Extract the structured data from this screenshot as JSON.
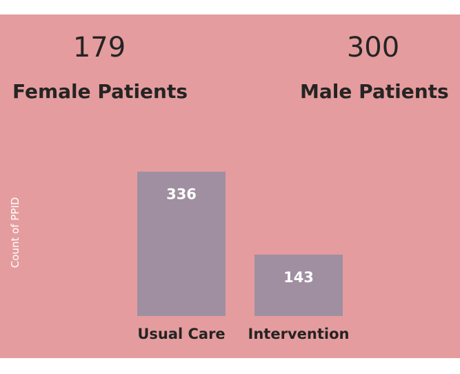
{
  "kpis": {
    "female": {
      "value": "179",
      "label": "Female Patients"
    },
    "male": {
      "value": "300",
      "label": "Male Patients"
    }
  },
  "colors": {
    "background": "#e59c9e",
    "bar": "#a08fa0",
    "data_label": "#ffffff",
    "text": "#252423"
  },
  "chart_data": {
    "type": "bar",
    "categories": [
      "Usual Care",
      "Intervention"
    ],
    "values": [
      336,
      143
    ],
    "xlabel": "",
    "ylabel": "Count of PPID",
    "ylim": [
      0,
      350
    ],
    "grid": false,
    "data_labels": true
  }
}
